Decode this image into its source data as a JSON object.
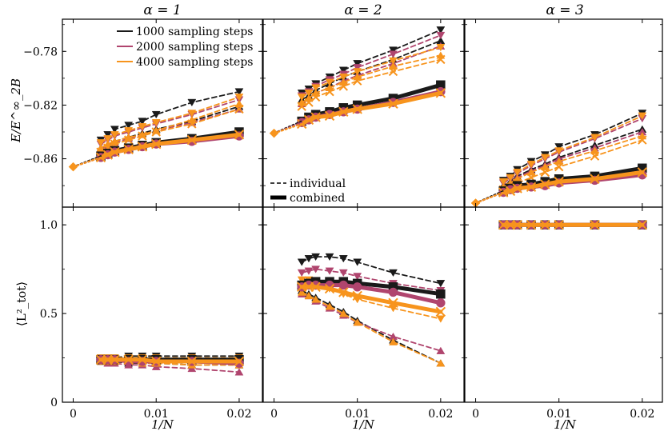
{
  "colors": {
    "s1000": "#1a1a1a",
    "s2000": "#b0456e",
    "s4000": "#f7941d",
    "axis": "#000000"
  },
  "chart_data": {
    "type": "line",
    "columns": [
      {
        "title": "α = 1"
      },
      {
        "title": "α = 2"
      },
      {
        "title": "α = 3"
      }
    ],
    "x": {
      "label": "1/N",
      "lim": [
        -0.0013,
        0.0228
      ],
      "ticks": [
        0,
        0.01,
        0.02
      ],
      "tick_labels": [
        "0",
        "0.01",
        "0.02"
      ]
    },
    "y_top": {
      "label": "E/E^∞_2B",
      "lim": [
        -0.896,
        -0.756
      ],
      "ticks": [
        -0.78,
        -0.82,
        -0.86
      ],
      "tick_labels": [
        "−0.78",
        "−0.82",
        "−0.86"
      ]
    },
    "y_bottom": {
      "label": "⟨L²_tot⟩",
      "lim": [
        0,
        1.1
      ],
      "ticks": [
        0,
        0.5,
        1.0
      ],
      "tick_labels": [
        "0",
        "0.5",
        "1.0"
      ]
    },
    "legend_steps": {
      "position": "top-right",
      "entries": [
        "1000 sampling steps",
        "2000 sampling steps",
        "4000 sampling steps"
      ]
    },
    "legend_style": {
      "position": "bottom-left",
      "entries": [
        "individual",
        "combined"
      ]
    },
    "x_points": [
      0.00333,
      0.00417,
      0.005,
      0.00667,
      0.00833,
      0.01,
      0.0143,
      0.02
    ],
    "top": {
      "extrapolation": [
        -0.866,
        -0.841,
        -0.893
      ],
      "combined": {
        "s1000": [
          [
            -0.858,
            -0.856,
            -0.854,
            -0.852,
            -0.85,
            -0.848,
            -0.845,
            -0.84
          ],
          [
            -0.832,
            -0.829,
            -0.827,
            -0.825,
            -0.822,
            -0.82,
            -0.815,
            -0.805
          ],
          [
            -0.884,
            -0.882,
            -0.88,
            -0.879,
            -0.877,
            -0.875,
            -0.873,
            -0.867
          ]
        ],
        "s2000": [
          [
            -0.859,
            -0.857,
            -0.855,
            -0.853,
            -0.851,
            -0.849,
            -0.847,
            -0.843
          ],
          [
            -0.833,
            -0.831,
            -0.829,
            -0.827,
            -0.825,
            -0.823,
            -0.818,
            -0.81
          ],
          [
            -0.885,
            -0.883,
            -0.882,
            -0.881,
            -0.88,
            -0.878,
            -0.876,
            -0.872
          ]
        ],
        "s4000": [
          [
            -0.859,
            -0.857,
            -0.855,
            -0.853,
            -0.851,
            -0.849,
            -0.846,
            -0.842
          ],
          [
            -0.834,
            -0.831,
            -0.829,
            -0.828,
            -0.825,
            -0.823,
            -0.819,
            -0.811
          ],
          [
            -0.885,
            -0.884,
            -0.882,
            -0.881,
            -0.879,
            -0.877,
            -0.875,
            -0.87
          ]
        ]
      },
      "individual": [
        [
          {
            "series": "s1000",
            "marker": "tri-down",
            "values": [
              -0.846,
              -0.842,
              -0.838,
              -0.835,
              -0.832,
              -0.827,
              -0.818,
              -0.81
            ]
          },
          {
            "series": "s1000",
            "marker": "tri-up",
            "values": [
              -0.852,
              -0.85,
              -0.847,
              -0.844,
              -0.841,
              -0.838,
              -0.832,
              -0.821
            ]
          },
          {
            "series": "s2000",
            "marker": "tri-down",
            "values": [
              -0.849,
              -0.846,
              -0.843,
              -0.84,
              -0.837,
              -0.834,
              -0.827,
              -0.816
            ]
          },
          {
            "series": "s2000",
            "marker": "tri-up",
            "values": [
              -0.853,
              -0.85,
              -0.848,
              -0.845,
              -0.842,
              -0.839,
              -0.833,
              -0.823
            ]
          },
          {
            "series": "s4000",
            "marker": "tri-down",
            "values": [
              -0.848,
              -0.845,
              -0.842,
              -0.839,
              -0.836,
              -0.833,
              -0.826,
              -0.814
            ]
          },
          {
            "series": "s4000",
            "marker": "tri-up",
            "values": [
              -0.852,
              -0.849,
              -0.847,
              -0.844,
              -0.842,
              -0.839,
              -0.831,
              -0.819
            ]
          },
          {
            "series": "s4000",
            "marker": "x",
            "values": [
              -0.855,
              -0.852,
              -0.849,
              -0.846,
              -0.843,
              -0.84,
              -0.834,
              -0.823
            ]
          }
        ],
        [
          {
            "series": "s1000",
            "marker": "tri-down",
            "values": [
              -0.811,
              -0.808,
              -0.804,
              -0.799,
              -0.794,
              -0.789,
              -0.779,
              -0.764
            ]
          },
          {
            "series": "s1000",
            "marker": "tri-up",
            "values": [
              -0.816,
              -0.813,
              -0.809,
              -0.804,
              -0.799,
              -0.795,
              -0.786,
              -0.772
            ]
          },
          {
            "series": "s2000",
            "marker": "tri-down",
            "values": [
              -0.813,
              -0.81,
              -0.806,
              -0.801,
              -0.797,
              -0.792,
              -0.782,
              -0.768
            ]
          },
          {
            "series": "s2000",
            "marker": "tri-up",
            "values": [
              -0.819,
              -0.815,
              -0.811,
              -0.807,
              -0.802,
              -0.798,
              -0.789,
              -0.776
            ]
          },
          {
            "series": "s4000",
            "marker": "tri-down",
            "values": [
              -0.814,
              -0.811,
              -0.807,
              -0.803,
              -0.799,
              -0.795,
              -0.787,
              -0.777
            ]
          },
          {
            "series": "s4000",
            "marker": "tri-up",
            "values": [
              -0.818,
              -0.815,
              -0.811,
              -0.807,
              -0.803,
              -0.799,
              -0.791,
              -0.783
            ]
          },
          {
            "series": "s4000",
            "marker": "x",
            "values": [
              -0.821,
              -0.818,
              -0.814,
              -0.81,
              -0.806,
              -0.802,
              -0.795,
              -0.786
            ]
          }
        ],
        [
          {
            "series": "s1000",
            "marker": "tri-down",
            "values": [
              -0.876,
              -0.873,
              -0.868,
              -0.862,
              -0.857,
              -0.851,
              -0.842,
              -0.826
            ]
          },
          {
            "series": "s1000",
            "marker": "tri-up",
            "values": [
              -0.88,
              -0.877,
              -0.873,
              -0.868,
              -0.864,
              -0.859,
              -0.85,
              -0.838
            ]
          },
          {
            "series": "s2000",
            "marker": "tri-down",
            "values": [
              -0.878,
              -0.875,
              -0.871,
              -0.865,
              -0.86,
              -0.855,
              -0.845,
              -0.83
            ]
          },
          {
            "series": "s2000",
            "marker": "tri-up",
            "values": [
              -0.881,
              -0.878,
              -0.874,
              -0.869,
              -0.865,
              -0.86,
              -0.852,
              -0.84
            ]
          },
          {
            "series": "s4000",
            "marker": "tri-down",
            "values": [
              -0.877,
              -0.874,
              -0.87,
              -0.864,
              -0.859,
              -0.854,
              -0.844,
              -0.828
            ]
          },
          {
            "series": "s4000",
            "marker": "tri-up",
            "values": [
              -0.881,
              -0.878,
              -0.875,
              -0.87,
              -0.866,
              -0.862,
              -0.854,
              -0.843
            ]
          },
          {
            "series": "s4000",
            "marker": "x",
            "values": [
              -0.883,
              -0.881,
              -0.878,
              -0.874,
              -0.87,
              -0.866,
              -0.858,
              -0.846
            ]
          }
        ]
      ]
    },
    "bottom": {
      "combined": {
        "s1000": [
          [
            0.24,
            0.24,
            0.24,
            0.24,
            0.24,
            0.24,
            0.24,
            0.24
          ],
          [
            0.66,
            0.67,
            0.68,
            0.68,
            0.68,
            0.67,
            0.65,
            0.61
          ],
          [
            1.0,
            1.0,
            1.0,
            1.0,
            1.0,
            1.0,
            1.0,
            1.0
          ]
        ],
        "s2000": [
          [
            0.24,
            0.24,
            0.24,
            0.23,
            0.23,
            0.23,
            0.23,
            0.22
          ],
          [
            0.65,
            0.66,
            0.66,
            0.66,
            0.66,
            0.65,
            0.62,
            0.56
          ],
          [
            1.0,
            1.0,
            1.0,
            1.0,
            1.0,
            1.0,
            1.0,
            1.0
          ]
        ],
        "s4000": [
          [
            0.24,
            0.24,
            0.24,
            0.24,
            0.24,
            0.23,
            0.23,
            0.23
          ],
          [
            0.65,
            0.65,
            0.65,
            0.64,
            0.62,
            0.6,
            0.56,
            0.51
          ],
          [
            1.0,
            1.0,
            1.0,
            1.0,
            1.0,
            1.0,
            1.0,
            1.0
          ]
        ]
      },
      "individual": [
        [
          {
            "series": "s1000",
            "marker": "tri-down",
            "values": [
              0.25,
              0.25,
              0.25,
              0.26,
              0.26,
              0.26,
              0.26,
              0.26
            ]
          },
          {
            "series": "s1000",
            "marker": "tri-up",
            "values": [
              0.23,
              0.23,
              0.23,
              0.22,
              0.22,
              0.22,
              0.21,
              0.21
            ]
          },
          {
            "series": "s2000",
            "marker": "tri-down",
            "values": [
              0.24,
              0.24,
              0.24,
              0.24,
              0.24,
              0.24,
              0.24,
              0.23
            ]
          },
          {
            "series": "s2000",
            "marker": "tri-up",
            "values": [
              0.23,
              0.22,
              0.22,
              0.21,
              0.21,
              0.2,
              0.19,
              0.17
            ]
          },
          {
            "series": "s4000",
            "marker": "tri-down",
            "values": [
              0.25,
              0.25,
              0.25,
              0.25,
              0.25,
              0.25,
              0.25,
              0.25
            ]
          },
          {
            "series": "s4000",
            "marker": "tri-up",
            "values": [
              0.23,
              0.23,
              0.23,
              0.23,
              0.22,
              0.22,
              0.21,
              0.21
            ]
          }
        ],
        [
          {
            "series": "s1000",
            "marker": "tri-down",
            "values": [
              0.79,
              0.81,
              0.82,
              0.82,
              0.81,
              0.79,
              0.73,
              0.67
            ]
          },
          {
            "series": "s1000",
            "marker": "tri-up",
            "values": [
              0.63,
              0.61,
              0.59,
              0.55,
              0.51,
              0.46,
              0.35,
              0.22
            ]
          },
          {
            "series": "s2000",
            "marker": "tri-down",
            "values": [
              0.73,
              0.74,
              0.75,
              0.74,
              0.73,
              0.71,
              0.67,
              0.63
            ]
          },
          {
            "series": "s2000",
            "marker": "tri-up",
            "values": [
              0.61,
              0.6,
              0.57,
              0.53,
              0.49,
              0.45,
              0.37,
              0.29
            ]
          },
          {
            "series": "s4000",
            "marker": "tri-down",
            "values": [
              0.69,
              0.69,
              0.67,
              0.64,
              0.61,
              0.58,
              0.53,
              0.47
            ]
          },
          {
            "series": "s4000",
            "marker": "tri-up",
            "values": [
              0.62,
              0.6,
              0.58,
              0.54,
              0.5,
              0.45,
              0.34,
              0.22
            ]
          }
        ],
        [
          {
            "series": "s1000",
            "marker": "tri-down",
            "values": [
              1.0,
              1.0,
              1.0,
              1.0,
              1.0,
              1.0,
              1.0,
              1.0
            ]
          },
          {
            "series": "s2000",
            "marker": "tri-up",
            "values": [
              1.0,
              1.0,
              1.0,
              1.0,
              1.0,
              1.0,
              1.0,
              1.0
            ]
          },
          {
            "series": "s4000",
            "marker": "x",
            "values": [
              1.0,
              1.0,
              1.0,
              1.0,
              1.0,
              1.0,
              1.0,
              1.0
            ]
          }
        ]
      ]
    }
  }
}
